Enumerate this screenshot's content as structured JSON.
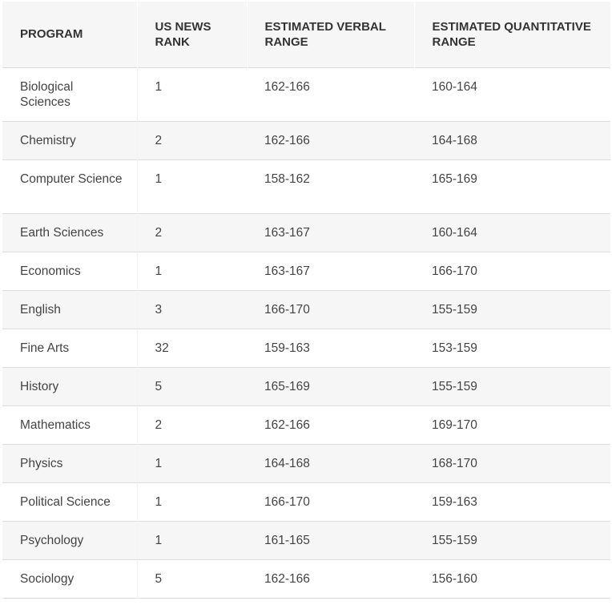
{
  "headers": [
    "PROGRAM",
    "US NEWS RANK",
    "ESTIMATED VERBAL RANGE",
    "ESTIMATED QUANTITATIVE RANGE"
  ],
  "rows": [
    {
      "program": "Biological Sciences",
      "rank": "1",
      "verbal": "162-166",
      "quant": "160-164"
    },
    {
      "program": "Chemistry",
      "rank": "2",
      "verbal": "162-166",
      "quant": "164-168"
    },
    {
      "program": "Computer Science",
      "rank": "1",
      "verbal": "158-162",
      "quant": "165-169"
    },
    {
      "program": "Earth Sciences",
      "rank": "2",
      "verbal": "163-167",
      "quant": "160-164"
    },
    {
      "program": "Economics",
      "rank": "1",
      "verbal": "163-167",
      "quant": "166-170"
    },
    {
      "program": "English",
      "rank": "3",
      "verbal": "166-170",
      "quant": "155-159"
    },
    {
      "program": "Fine Arts",
      "rank": "32",
      "verbal": "159-163",
      "quant": "153-159"
    },
    {
      "program": "History",
      "rank": "5",
      "verbal": "165-169",
      "quant": "155-159"
    },
    {
      "program": "Mathematics",
      "rank": "2",
      "verbal": "162-166",
      "quant": "169-170"
    },
    {
      "program": "Physics",
      "rank": "1",
      "verbal": "164-168",
      "quant": "168-170"
    },
    {
      "program": "Political Science",
      "rank": "1",
      "verbal": "166-170",
      "quant": "159-163"
    },
    {
      "program": "Psychology",
      "rank": "1",
      "verbal": "161-165",
      "quant": "155-159"
    },
    {
      "program": "Sociology",
      "rank": "5",
      "verbal": "162-166",
      "quant": "156-160"
    }
  ]
}
